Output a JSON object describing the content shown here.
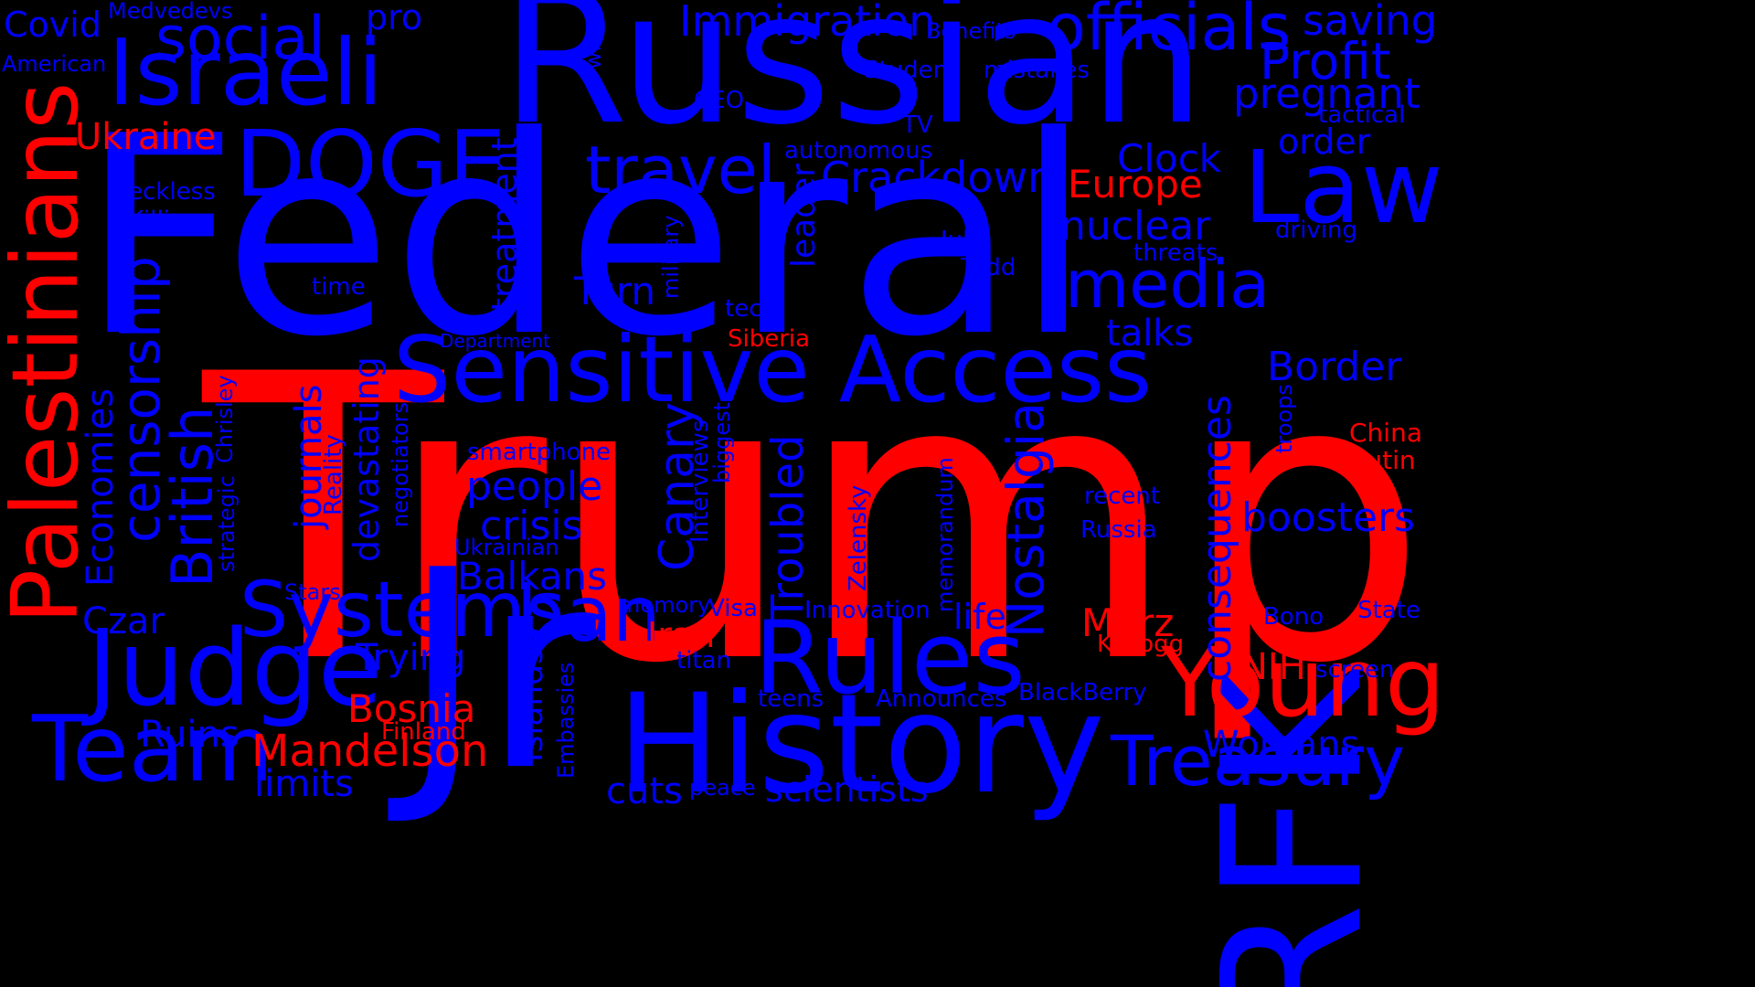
{
  "colors": {
    "background": "#000000",
    "blue": "#0000FF",
    "red": "#FF0000"
  },
  "words": [
    {
      "text": "Trump",
      "color": "red",
      "vertical": false
    },
    {
      "text": "Federal",
      "color": "blue",
      "vertical": false
    },
    {
      "text": "Russian",
      "color": "blue",
      "vertical": false
    },
    {
      "text": "Jr",
      "color": "blue",
      "vertical": false
    },
    {
      "text": "RFK",
      "color": "blue",
      "vertical": true
    },
    {
      "text": "History",
      "color": "blue",
      "vertical": false
    },
    {
      "text": "Palestinians",
      "color": "red",
      "vertical": true
    },
    {
      "text": "Sensitive Access",
      "color": "blue",
      "vertical": false
    },
    {
      "text": "Israeli",
      "color": "blue",
      "vertical": false
    },
    {
      "text": "Young",
      "color": "red",
      "vertical": false
    },
    {
      "text": "Judge",
      "color": "blue",
      "vertical": false
    },
    {
      "text": "Team",
      "color": "blue",
      "vertical": false
    },
    {
      "text": "Rules",
      "color": "blue",
      "vertical": false
    },
    {
      "text": "DOGE",
      "color": "blue",
      "vertical": false
    },
    {
      "text": "Law",
      "color": "blue",
      "vertical": false
    },
    {
      "text": "Systems",
      "color": "blue",
      "vertical": false
    },
    {
      "text": "officials",
      "color": "blue",
      "vertical": false
    },
    {
      "text": "Treasury",
      "color": "blue",
      "vertical": false
    },
    {
      "text": "ban",
      "color": "blue",
      "vertical": false
    },
    {
      "text": "media",
      "color": "blue",
      "vertical": false
    },
    {
      "text": "social",
      "color": "blue",
      "vertical": false
    },
    {
      "text": "travel",
      "color": "blue",
      "vertical": false
    },
    {
      "text": "British",
      "color": "blue",
      "vertical": true
    },
    {
      "text": "censorship",
      "color": "blue",
      "vertical": true
    },
    {
      "text": "Troubled",
      "color": "blue",
      "vertical": true
    },
    {
      "text": "Nostalgia",
      "color": "blue",
      "vertical": true
    },
    {
      "text": "Profit",
      "color": "blue",
      "vertical": false
    },
    {
      "text": "Mandelson",
      "color": "red",
      "vertical": false
    },
    {
      "text": "Canary",
      "color": "blue",
      "vertical": true
    },
    {
      "text": "Immigration",
      "color": "blue",
      "vertical": false
    },
    {
      "text": "Crackdown",
      "color": "blue",
      "vertical": false
    },
    {
      "text": "pregnant",
      "color": "blue",
      "vertical": false
    },
    {
      "text": "saving",
      "color": "blue",
      "vertical": false
    },
    {
      "text": "nuclear",
      "color": "blue",
      "vertical": false
    },
    {
      "text": "Border",
      "color": "blue",
      "vertical": false
    },
    {
      "text": "boosters",
      "color": "blue",
      "vertical": false
    },
    {
      "text": "consequences",
      "color": "blue",
      "vertical": true
    },
    {
      "text": "people",
      "color": "blue",
      "vertical": false
    },
    {
      "text": "crisis",
      "color": "blue",
      "vertical": false
    },
    {
      "text": "Balkans",
      "color": "blue",
      "vertical": false
    },
    {
      "text": "Bosnia",
      "color": "red",
      "vertical": false
    },
    {
      "text": "Europe",
      "color": "red",
      "vertical": false
    },
    {
      "text": "Clock",
      "color": "blue",
      "vertical": false
    },
    {
      "text": "Ukraine",
      "color": "red",
      "vertical": false
    },
    {
      "text": "Womans",
      "color": "blue",
      "vertical": false
    },
    {
      "text": "Merz",
      "color": "red",
      "vertical": false
    },
    {
      "text": "NIH",
      "color": "red",
      "vertical": false
    },
    {
      "text": "Iran",
      "color": "red",
      "vertical": false
    },
    {
      "text": "Turn",
      "color": "blue",
      "vertical": false
    },
    {
      "text": "talks",
      "color": "blue",
      "vertical": false
    },
    {
      "text": "order",
      "color": "blue",
      "vertical": false
    },
    {
      "text": "life",
      "color": "blue",
      "vertical": false
    },
    {
      "text": "Trying",
      "color": "blue",
      "vertical": false
    },
    {
      "text": "Czar",
      "color": "blue",
      "vertical": false
    },
    {
      "text": "Ruins",
      "color": "blue",
      "vertical": false
    },
    {
      "text": "limits",
      "color": "blue",
      "vertical": false
    },
    {
      "text": "cuts",
      "color": "blue",
      "vertical": false
    },
    {
      "text": "scientists",
      "color": "blue",
      "vertical": false
    },
    {
      "text": "pro",
      "color": "blue",
      "vertical": false
    },
    {
      "text": "Covid",
      "color": "blue",
      "vertical": false
    },
    {
      "text": "Economies",
      "color": "blue",
      "vertical": true
    },
    {
      "text": "journals",
      "color": "blue",
      "vertical": true
    },
    {
      "text": "devastating",
      "color": "blue",
      "vertical": true
    },
    {
      "text": "treatment",
      "color": "blue",
      "vertical": true
    },
    {
      "text": "leader",
      "color": "blue",
      "vertical": true
    },
    {
      "text": "Islands",
      "color": "blue",
      "vertical": true
    },
    {
      "text": "China",
      "color": "red",
      "vertical": false
    },
    {
      "text": "Putin",
      "color": "red",
      "vertical": false
    },
    {
      "text": "Finland",
      "color": "red",
      "vertical": false
    },
    {
      "text": "Kellogg",
      "color": "red",
      "vertical": false
    },
    {
      "text": "Siberia",
      "color": "red",
      "vertical": false
    },
    {
      "text": "Medvedevs",
      "color": "blue",
      "vertical": false
    },
    {
      "text": "American",
      "color": "blue",
      "vertical": false
    },
    {
      "text": "Benefits",
      "color": "blue",
      "vertical": false
    },
    {
      "text": "Student",
      "color": "blue",
      "vertical": false
    },
    {
      "text": "mistakes",
      "color": "blue",
      "vertical": false
    },
    {
      "text": "CEO",
      "color": "blue",
      "vertical": false
    },
    {
      "text": "TV",
      "color": "blue",
      "vertical": false
    },
    {
      "text": "tactical",
      "color": "blue",
      "vertical": false
    },
    {
      "text": "autonomous",
      "color": "blue",
      "vertical": false
    },
    {
      "text": "reckless",
      "color": "blue",
      "vertical": false
    },
    {
      "text": "Killing",
      "color": "blue",
      "vertical": false
    },
    {
      "text": "driving",
      "color": "blue",
      "vertical": false
    },
    {
      "text": "threats",
      "color": "blue",
      "vertical": false
    },
    {
      "text": "Julie",
      "color": "blue",
      "vertical": false
    },
    {
      "text": "Todd",
      "color": "blue",
      "vertical": false
    },
    {
      "text": "time",
      "color": "blue",
      "vertical": false
    },
    {
      "text": "tech",
      "color": "blue",
      "vertical": false
    },
    {
      "text": "Department",
      "color": "blue",
      "vertical": false
    },
    {
      "text": "smartphone",
      "color": "blue",
      "vertical": false
    },
    {
      "text": "recent",
      "color": "blue",
      "vertical": false
    },
    {
      "text": "Russia",
      "color": "blue",
      "vertical": false
    },
    {
      "text": "Ukrainian",
      "color": "blue",
      "vertical": false
    },
    {
      "text": "Stars",
      "color": "blue",
      "vertical": false
    },
    {
      "text": "memory",
      "color": "blue",
      "vertical": false
    },
    {
      "text": "Visa",
      "color": "blue",
      "vertical": false
    },
    {
      "text": "Innovation",
      "color": "blue",
      "vertical": false
    },
    {
      "text": "titan",
      "color": "blue",
      "vertical": false
    },
    {
      "text": "teens",
      "color": "blue",
      "vertical": false
    },
    {
      "text": "Announces",
      "color": "blue",
      "vertical": false
    },
    {
      "text": "BlackBerry",
      "color": "blue",
      "vertical": false
    },
    {
      "text": "Bono",
      "color": "blue",
      "vertical": false
    },
    {
      "text": "State",
      "color": "blue",
      "vertical": false
    },
    {
      "text": "screen",
      "color": "blue",
      "vertical": false
    },
    {
      "text": "peace",
      "color": "blue",
      "vertical": false
    },
    {
      "text": "wheel",
      "color": "blue",
      "vertical": true
    },
    {
      "text": "military",
      "color": "blue",
      "vertical": true
    },
    {
      "text": "strategic",
      "color": "blue",
      "vertical": true
    },
    {
      "text": "Chrisley",
      "color": "blue",
      "vertical": true
    },
    {
      "text": "Reality",
      "color": "blue",
      "vertical": true
    },
    {
      "text": "negotiators",
      "color": "blue",
      "vertical": true
    },
    {
      "text": "Interviews",
      "color": "blue",
      "vertical": true
    },
    {
      "text": "biggest",
      "color": "blue",
      "vertical": true
    },
    {
      "text": "Zelensky",
      "color": "blue",
      "vertical": true
    },
    {
      "text": "memorandum",
      "color": "blue",
      "vertical": true
    },
    {
      "text": "troops",
      "color": "blue",
      "vertical": true
    },
    {
      "text": "Embassies",
      "color": "blue",
      "vertical": true
    }
  ]
}
